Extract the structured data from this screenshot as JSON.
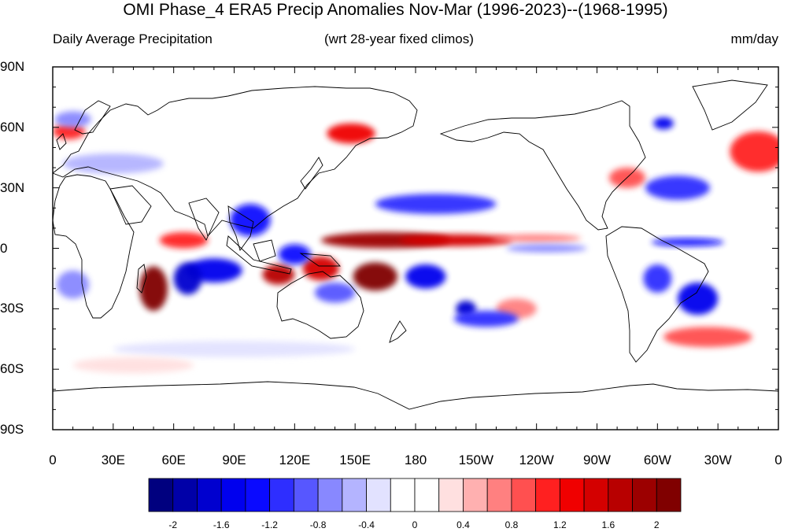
{
  "title": "OMI Phase_4 ERA5 Precip Anomalies Nov-Mar (1996-2023)--(1968-1995)",
  "subtitle_left": "Daily Average Precipitation",
  "subtitle_center": "(wrt 28-year fixed climos)",
  "subtitle_right": "mm/day",
  "map": {
    "projection": "cylindrical-equidistant",
    "lon_range": [
      0,
      360
    ],
    "lat_range": [
      -90,
      90
    ],
    "lat_labels": [
      "90N",
      "60N",
      "30N",
      "0",
      "30S",
      "60S",
      "90S"
    ],
    "lat_values": [
      90,
      60,
      30,
      0,
      -30,
      -60,
      -90
    ],
    "lon_labels": [
      "0",
      "30E",
      "60E",
      "90E",
      "120E",
      "150E",
      "180",
      "150W",
      "120W",
      "90W",
      "60W",
      "30W",
      "0"
    ],
    "lon_values": [
      0,
      30,
      60,
      90,
      120,
      150,
      180,
      210,
      240,
      270,
      300,
      330,
      360
    ]
  },
  "colorbar": {
    "colors": [
      "#00007f",
      "#0000a8",
      "#0000cf",
      "#0000ee",
      "#0a0aff",
      "#2e2eff",
      "#5757ff",
      "#8888ff",
      "#b4b4ff",
      "#e2e2ff",
      "#ffffff",
      "#ffffff",
      "#ffe0e0",
      "#ffb0b0",
      "#ff8080",
      "#ff5050",
      "#ff2020",
      "#f00000",
      "#d40000",
      "#b80000",
      "#9c0000",
      "#800000"
    ],
    "tick_labels": [
      "-2",
      "-1.6",
      "-1.2",
      "-0.8",
      "-0.4",
      "0",
      "0.4",
      "0.8",
      "1.2",
      "1.6",
      "2"
    ],
    "tick_values": [
      -2,
      -1.6,
      -1.2,
      -0.8,
      -0.4,
      0,
      0.4,
      0.8,
      1.2,
      1.6,
      2
    ],
    "min": -2.2,
    "max": 2.2
  },
  "anomaly_features": [
    {
      "lon": 165,
      "lat": 4,
      "rx": 32,
      "ry": 4,
      "value": 1.8
    },
    {
      "lon": 200,
      "lat": 4,
      "rx": 28,
      "ry": 3,
      "value": 1.4
    },
    {
      "lon": 240,
      "lat": 5,
      "rx": 22,
      "ry": 2,
      "value": 0.8
    },
    {
      "lon": 50,
      "lat": -20,
      "rx": 7,
      "ry": 11,
      "value": 2.0
    },
    {
      "lon": 112,
      "lat": -13,
      "rx": 8,
      "ry": 5,
      "value": 1.6
    },
    {
      "lon": 133,
      "lat": -10,
      "rx": 9,
      "ry": 6,
      "value": 1.4
    },
    {
      "lon": 160,
      "lat": -14,
      "rx": 11,
      "ry": 7,
      "value": 2.0
    },
    {
      "lon": 148,
      "lat": 57,
      "rx": 12,
      "ry": 5,
      "value": 1.2
    },
    {
      "lon": 350,
      "lat": 48,
      "rx": 14,
      "ry": 10,
      "value": 1.1
    },
    {
      "lon": 285,
      "lat": 35,
      "rx": 9,
      "ry": 5,
      "value": 0.9
    },
    {
      "lon": 325,
      "lat": -44,
      "rx": 22,
      "ry": 5,
      "value": 0.9
    },
    {
      "lon": 230,
      "lat": -30,
      "rx": 10,
      "ry": 5,
      "value": 0.8
    },
    {
      "lon": 65,
      "lat": 4,
      "rx": 12,
      "ry": 4,
      "value": 1.0
    },
    {
      "lon": 8,
      "lat": 58,
      "rx": 8,
      "ry": 4,
      "value": 1.0
    },
    {
      "lon": 80,
      "lat": -11,
      "rx": 14,
      "ry": 6,
      "value": -1.6
    },
    {
      "lon": 67,
      "lat": -15,
      "rx": 7,
      "ry": 8,
      "value": -1.8
    },
    {
      "lon": 98,
      "lat": 14,
      "rx": 10,
      "ry": 8,
      "value": -1.3
    },
    {
      "lon": 120,
      "lat": -3,
      "rx": 8,
      "ry": 5,
      "value": -1.4
    },
    {
      "lon": 140,
      "lat": -22,
      "rx": 10,
      "ry": 5,
      "value": -1.0
    },
    {
      "lon": 185,
      "lat": -14,
      "rx": 10,
      "ry": 6,
      "value": -1.6
    },
    {
      "lon": 190,
      "lat": 22,
      "rx": 30,
      "ry": 5,
      "value": -1.2
    },
    {
      "lon": 205,
      "lat": -30,
      "rx": 5,
      "ry": 4,
      "value": -1.8
    },
    {
      "lon": 215,
      "lat": -35,
      "rx": 16,
      "ry": 4,
      "value": -1.2
    },
    {
      "lon": 320,
      "lat": -25,
      "rx": 10,
      "ry": 8,
      "value": -1.6
    },
    {
      "lon": 300,
      "lat": -15,
      "rx": 7,
      "ry": 7,
      "value": -1.1
    },
    {
      "lon": 310,
      "lat": 30,
      "rx": 16,
      "ry": 6,
      "value": -1.2
    },
    {
      "lon": 303,
      "lat": 62,
      "rx": 5,
      "ry": 3,
      "value": -1.6
    },
    {
      "lon": 10,
      "lat": 64,
      "rx": 9,
      "ry": 4,
      "value": -0.8
    },
    {
      "lon": 315,
      "lat": 3,
      "rx": 18,
      "ry": 2,
      "value": -1.4
    },
    {
      "lon": 245,
      "lat": 0,
      "rx": 20,
      "ry": 2,
      "value": -0.8
    },
    {
      "lon": 10,
      "lat": -18,
      "rx": 8,
      "ry": 7,
      "value": -0.8
    },
    {
      "lon": 30,
      "lat": 42,
      "rx": 25,
      "ry": 5,
      "value": -0.6
    },
    {
      "lon": 90,
      "lat": -50,
      "rx": 60,
      "ry": 4,
      "value": -0.4
    },
    {
      "lon": 40,
      "lat": -58,
      "rx": 30,
      "ry": 4,
      "value": 0.4
    }
  ]
}
